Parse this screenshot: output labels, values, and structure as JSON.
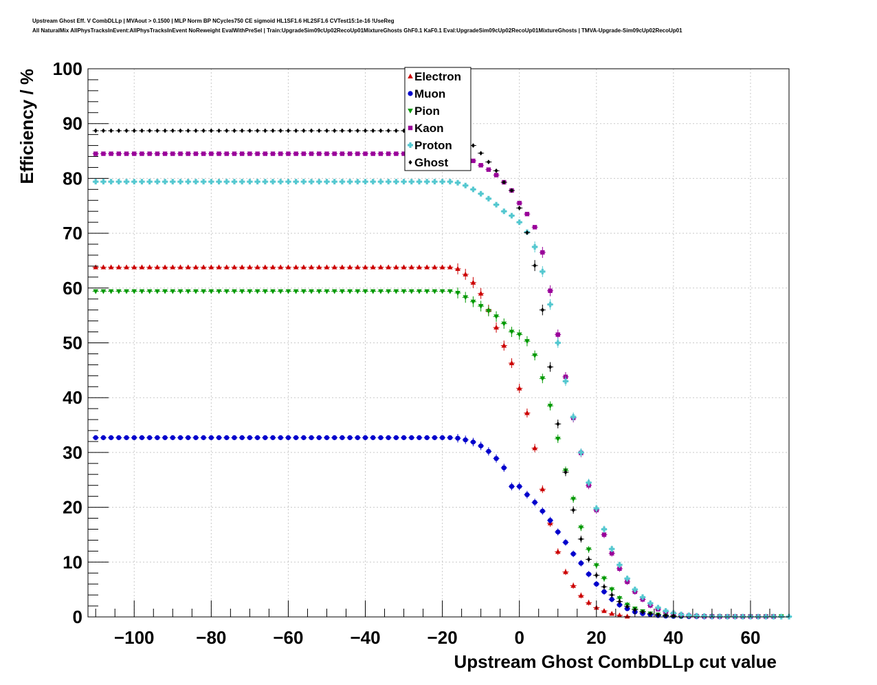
{
  "title_line1": "Upstream Ghost Eff. V CombDLLp | MVAout > 0.1500 | MLP Norm BP NCycles750 CE sigmoid HL1SF1.6 HL2SF1.6 CVTest15:1e-16 !UseReg",
  "title_line2": "All NaturalMix AllPhysTracksInEvent:AllPhysTracksInEvent NoReweight EvalWithPreSel | Train:UpgradeSim09cUp02RecoUp01MixtureGhosts GhF0.1 KaF0.1 Eval:UpgradeSim09cUp02RecoUp01MixtureGhosts | TMVA-Upgrade-Sim09cUp02RecoUp01",
  "chart_data": {
    "type": "scatter",
    "xlabel": "Upstream Ghost CombDLLp cut value",
    "ylabel": "Efficiency / %",
    "xlim": [
      -112,
      70
    ],
    "ylim": [
      0,
      100
    ],
    "xticks": [
      -100,
      -80,
      -60,
      -40,
      -20,
      0,
      20,
      40,
      60
    ],
    "xtick_labels": [
      "−100",
      "−80",
      "−60",
      "−40",
      "−20",
      "0",
      "20",
      "40",
      "60"
    ],
    "yticks": [
      0,
      10,
      20,
      30,
      40,
      50,
      60,
      70,
      80,
      90,
      100
    ],
    "grid": true,
    "legend_position": "top-center",
    "x_start": -110,
    "x_step": 2,
    "series": [
      {
        "name": "Electron",
        "color": "#cc0000",
        "marker": "triangle-up",
        "plateau": 63.8,
        "x_end": 28,
        "tail": [
          [
            -16,
            63.5
          ],
          [
            -14,
            62.5
          ],
          [
            -12,
            61.0
          ],
          [
            -10,
            59.0
          ],
          [
            -8,
            56.0
          ],
          [
            -6,
            52.8
          ],
          [
            -4,
            49.5
          ],
          [
            -2,
            46.3
          ],
          [
            0,
            41.7
          ],
          [
            2,
            37.2
          ],
          [
            4,
            30.8
          ],
          [
            6,
            23.3
          ],
          [
            8,
            17.1
          ],
          [
            10,
            11.9
          ],
          [
            12,
            8.2
          ],
          [
            14,
            5.7
          ],
          [
            16,
            3.9
          ],
          [
            18,
            2.6
          ],
          [
            20,
            1.7
          ],
          [
            22,
            1.1
          ],
          [
            24,
            0.6
          ],
          [
            26,
            0.3
          ],
          [
            28,
            0.1
          ]
        ]
      },
      {
        "name": "Muon",
        "color": "#0000cc",
        "marker": "circle",
        "plateau": 32.7,
        "x_end": 52,
        "tail": [
          [
            -16,
            32.6
          ],
          [
            -14,
            32.3
          ],
          [
            -12,
            31.9
          ],
          [
            -10,
            31.2
          ],
          [
            -8,
            30.2
          ],
          [
            -6,
            28.9
          ],
          [
            -4,
            27.2
          ],
          [
            -2,
            23.8
          ],
          [
            0,
            23.8
          ],
          [
            2,
            22.3
          ],
          [
            4,
            20.9
          ],
          [
            6,
            19.3
          ],
          [
            8,
            17.6
          ],
          [
            10,
            15.5
          ],
          [
            12,
            13.6
          ],
          [
            14,
            11.5
          ],
          [
            16,
            9.8
          ],
          [
            18,
            7.8
          ],
          [
            20,
            6.0
          ],
          [
            22,
            4.6
          ],
          [
            24,
            3.2
          ],
          [
            26,
            2.2
          ],
          [
            28,
            1.5
          ],
          [
            30,
            0.9
          ],
          [
            32,
            0.6
          ],
          [
            34,
            0.4
          ],
          [
            36,
            0.25
          ],
          [
            38,
            0.15
          ],
          [
            40,
            0.1
          ],
          [
            42,
            0.1
          ],
          [
            44,
            0.05
          ],
          [
            46,
            0.05
          ],
          [
            48,
            0.02
          ],
          [
            50,
            0.02
          ],
          [
            52,
            0.02
          ]
        ]
      },
      {
        "name": "Pion",
        "color": "#009900",
        "marker": "triangle-down",
        "plateau": 59.4,
        "x_end": 68,
        "tail": [
          [
            -16,
            59.1
          ],
          [
            -14,
            58.3
          ],
          [
            -12,
            57.5
          ],
          [
            -10,
            56.7
          ],
          [
            -8,
            55.8
          ],
          [
            -6,
            54.8
          ],
          [
            -4,
            53.5
          ],
          [
            -2,
            52.0
          ],
          [
            0,
            51.5
          ],
          [
            2,
            50.3
          ],
          [
            4,
            47.7
          ],
          [
            6,
            43.5
          ],
          [
            8,
            38.5
          ],
          [
            10,
            32.5
          ],
          [
            12,
            26.7
          ],
          [
            14,
            21.5
          ],
          [
            16,
            16.3
          ],
          [
            18,
            12.3
          ],
          [
            20,
            9.4
          ],
          [
            22,
            7.0
          ],
          [
            24,
            5.0
          ],
          [
            26,
            3.4
          ],
          [
            28,
            2.2
          ],
          [
            30,
            1.5
          ],
          [
            32,
            1.0
          ],
          [
            34,
            0.6
          ],
          [
            36,
            0.4
          ],
          [
            38,
            0.25
          ],
          [
            40,
            0.15
          ],
          [
            42,
            0.1
          ],
          [
            44,
            0.1
          ],
          [
            46,
            0.1
          ],
          [
            48,
            0.1
          ],
          [
            50,
            0.1
          ],
          [
            52,
            0.1
          ],
          [
            54,
            0.1
          ],
          [
            56,
            0.1
          ],
          [
            58,
            0.1
          ],
          [
            60,
            0.1
          ],
          [
            62,
            0.1
          ],
          [
            64,
            0.1
          ],
          [
            66,
            0.1
          ],
          [
            68,
            0.1
          ]
        ]
      },
      {
        "name": "Kaon",
        "color": "#990099",
        "marker": "square",
        "plateau": 84.5,
        "x_end": 66,
        "tail": [
          [
            -16,
            84.3
          ],
          [
            -14,
            83.8
          ],
          [
            -12,
            83.2
          ],
          [
            -10,
            82.4
          ],
          [
            -8,
            81.6
          ],
          [
            -6,
            80.6
          ],
          [
            -4,
            79.3
          ],
          [
            -2,
            77.8
          ],
          [
            0,
            75.5
          ],
          [
            2,
            73.5
          ],
          [
            4,
            71.1
          ],
          [
            6,
            66.5
          ],
          [
            8,
            59.5
          ],
          [
            10,
            51.5
          ],
          [
            12,
            43.8
          ],
          [
            14,
            36.3
          ],
          [
            16,
            29.9
          ],
          [
            18,
            24.0
          ],
          [
            20,
            19.5
          ],
          [
            22,
            15.0
          ],
          [
            24,
            11.6
          ],
          [
            26,
            8.8
          ],
          [
            28,
            6.4
          ],
          [
            30,
            4.6
          ],
          [
            32,
            3.2
          ],
          [
            34,
            2.1
          ],
          [
            36,
            1.4
          ],
          [
            38,
            0.9
          ],
          [
            40,
            0.55
          ],
          [
            42,
            0.35
          ],
          [
            44,
            0.2
          ],
          [
            46,
            0.15
          ],
          [
            48,
            0.1
          ],
          [
            50,
            0.1
          ],
          [
            52,
            0.05
          ],
          [
            54,
            0.05
          ],
          [
            56,
            0.05
          ],
          [
            58,
            0.05
          ],
          [
            60,
            0.05
          ],
          [
            62,
            0.05
          ],
          [
            64,
            0.05
          ],
          [
            66,
            0.05
          ]
        ]
      },
      {
        "name": "Proton",
        "color": "#55c8d0",
        "marker": "cross",
        "plateau": 79.4,
        "x_end": 70,
        "tail": [
          [
            -16,
            79.2
          ],
          [
            -14,
            78.7
          ],
          [
            -12,
            78.0
          ],
          [
            -10,
            77.2
          ],
          [
            -8,
            76.3
          ],
          [
            -6,
            75.2
          ],
          [
            -4,
            74.0
          ],
          [
            -2,
            73.2
          ],
          [
            0,
            72.0
          ],
          [
            2,
            70.2
          ],
          [
            4,
            67.5
          ],
          [
            6,
            63.0
          ],
          [
            8,
            57.0
          ],
          [
            10,
            50.0
          ],
          [
            12,
            43.0
          ],
          [
            14,
            36.5
          ],
          [
            16,
            30.0
          ],
          [
            18,
            24.5
          ],
          [
            20,
            19.8
          ],
          [
            22,
            16.0
          ],
          [
            24,
            12.4
          ],
          [
            26,
            9.5
          ],
          [
            28,
            7.0
          ],
          [
            30,
            5.0
          ],
          [
            32,
            3.6
          ],
          [
            34,
            2.5
          ],
          [
            36,
            1.7
          ],
          [
            38,
            1.1
          ],
          [
            40,
            0.7
          ],
          [
            42,
            0.45
          ],
          [
            44,
            0.3
          ],
          [
            46,
            0.2
          ],
          [
            48,
            0.15
          ],
          [
            50,
            0.1
          ],
          [
            52,
            0.1
          ],
          [
            54,
            0.05
          ],
          [
            56,
            0.05
          ],
          [
            58,
            0.05
          ],
          [
            60,
            0.05
          ],
          [
            62,
            0.05
          ],
          [
            64,
            0.05
          ],
          [
            66,
            0.05
          ],
          [
            68,
            0.05
          ],
          [
            70,
            0.05
          ]
        ]
      },
      {
        "name": "Ghost",
        "color": "#000000",
        "marker": "diamond",
        "plateau": 88.7,
        "x_end": 40,
        "tail": [
          [
            -16,
            88.5
          ],
          [
            -14,
            87.6
          ],
          [
            -12,
            86.0
          ],
          [
            -10,
            84.6
          ],
          [
            -8,
            83.0
          ],
          [
            -6,
            81.4
          ],
          [
            -4,
            79.3
          ],
          [
            -2,
            77.8
          ],
          [
            0,
            74.6
          ],
          [
            2,
            70.1
          ],
          [
            4,
            64.1
          ],
          [
            6,
            56.0
          ],
          [
            8,
            45.6
          ],
          [
            10,
            35.2
          ],
          [
            12,
            26.4
          ],
          [
            14,
            19.5
          ],
          [
            16,
            14.2
          ],
          [
            18,
            10.5
          ],
          [
            20,
            7.6
          ],
          [
            22,
            5.5
          ],
          [
            24,
            4.0
          ],
          [
            26,
            2.8
          ],
          [
            28,
            1.9
          ],
          [
            30,
            1.3
          ],
          [
            32,
            0.9
          ],
          [
            34,
            0.6
          ],
          [
            36,
            0.4
          ],
          [
            38,
            0.3
          ],
          [
            40,
            0.2
          ]
        ]
      }
    ]
  }
}
